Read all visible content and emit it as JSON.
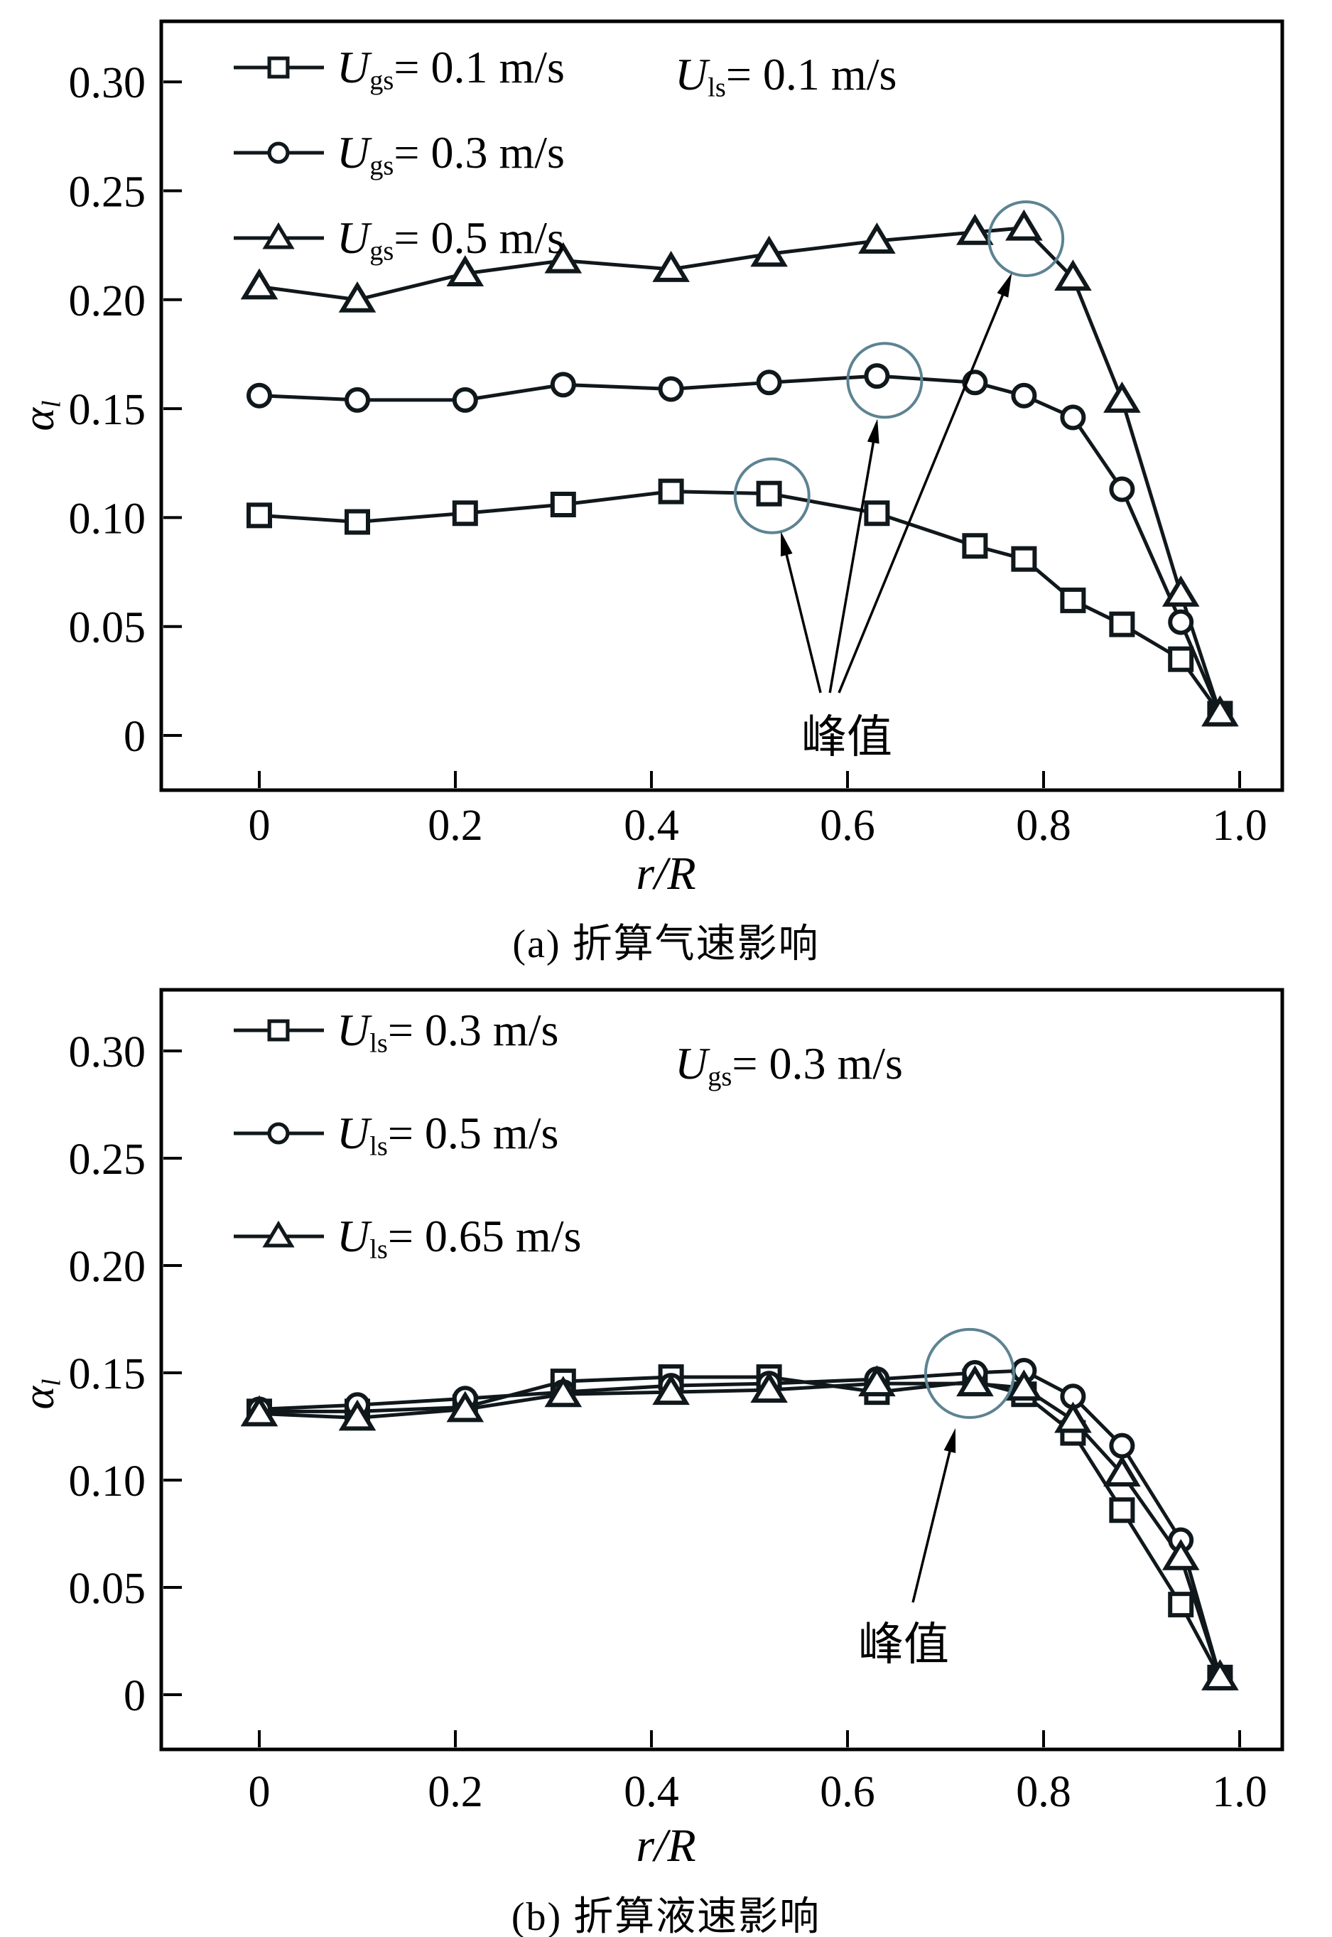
{
  "figure": {
    "background": "#ffffff",
    "series_color": "#10181c",
    "axis_color": "#000000",
    "annotation_ring_color": "#5d8392"
  },
  "chart_data": [
    {
      "type": "line",
      "panel": "a",
      "caption": "(a) 折算气速影响",
      "xlabel": "r/R",
      "ylabel": {
        "base": "α",
        "sub": "l"
      },
      "note": {
        "base": "U",
        "sub": "ls",
        "rest": "= 0.1 m/s"
      },
      "peak_label": "峰值",
      "legend_position": "upper-left",
      "grid": false,
      "xlim": [
        -0.1,
        1.043
      ],
      "ylim": [
        -0.025,
        0.328
      ],
      "x_ticks": [
        0,
        0.2,
        0.4,
        0.6,
        0.8,
        1.0
      ],
      "x_tick_labels": [
        "0",
        "0.2",
        "0.4",
        "0.6",
        "0.8",
        "1.0"
      ],
      "y_ticks": [
        0,
        0.05,
        0.1,
        0.15,
        0.2,
        0.25,
        0.3
      ],
      "y_tick_labels": [
        "0",
        "0.05",
        "0.10",
        "0.15",
        "0.20",
        "0.25",
        "0.30"
      ],
      "x": [
        0,
        0.1,
        0.21,
        0.31,
        0.42,
        0.52,
        0.63,
        0.73,
        0.78,
        0.83,
        0.88,
        0.94,
        0.98
      ],
      "series": [
        {
          "marker": "square",
          "legend": {
            "base": "U",
            "sub": "gs",
            "rest": "= 0.1 m/s"
          },
          "values": [
            0.101,
            0.098,
            0.102,
            0.106,
            0.112,
            0.111,
            0.102,
            0.087,
            0.081,
            0.062,
            0.051,
            0.035,
            0.01
          ]
        },
        {
          "marker": "circle",
          "legend": {
            "base": "U",
            "sub": "gs",
            "rest": "= 0.3 m/s"
          },
          "values": [
            0.156,
            0.154,
            0.154,
            0.161,
            0.159,
            0.162,
            0.165,
            0.162,
            0.156,
            0.146,
            0.113,
            0.052,
            0.01
          ]
        },
        {
          "marker": "triangle",
          "legend": {
            "base": "U",
            "sub": "gs",
            "rest": "= 0.5 m/s"
          },
          "values": [
            0.206,
            0.2,
            0.212,
            0.218,
            0.214,
            0.221,
            0.227,
            0.231,
            0.233,
            0.21,
            0.154,
            0.065,
            0.01
          ]
        }
      ],
      "peak_rings": [
        {
          "x": 0.523,
          "v": 0.11,
          "r": 52
        },
        {
          "x": 0.638,
          "v": 0.163,
          "r": 52
        },
        {
          "x": 0.782,
          "v": 0.228,
          "r": 52
        }
      ],
      "arrows": [
        {
          "x1": 0.5725,
          "v1": 0.0196,
          "x2": 0.532,
          "v2": 0.0936
        },
        {
          "x1": 0.582,
          "v1": 0.0196,
          "x2": 0.6305,
          "v2": 0.1453
        },
        {
          "x1": 0.5913,
          "v1": 0.0196,
          "x2": 0.7676,
          "v2": 0.2123
        }
      ]
    },
    {
      "type": "line",
      "panel": "b",
      "caption": "(b) 折算液速影响",
      "xlabel": "r/R",
      "ylabel": {
        "base": "α",
        "sub": "l"
      },
      "note": {
        "base": "U",
        "sub": "gs",
        "rest": "= 0.3 m/s"
      },
      "peak_label": "峰值",
      "legend_position": "upper-left",
      "grid": false,
      "xlim": [
        -0.1,
        1.043
      ],
      "ylim": [
        -0.025,
        0.328
      ],
      "x_ticks": [
        0,
        0.2,
        0.4,
        0.6,
        0.8,
        1.0
      ],
      "x_tick_labels": [
        "0",
        "0.2",
        "0.4",
        "0.6",
        "0.8",
        "1.0"
      ],
      "y_ticks": [
        0,
        0.05,
        0.1,
        0.15,
        0.2,
        0.25,
        0.3
      ],
      "y_tick_labels": [
        "0",
        "0.05",
        "0.10",
        "0.15",
        "0.20",
        "0.25",
        "0.30"
      ],
      "x": [
        0,
        0.1,
        0.21,
        0.31,
        0.42,
        0.52,
        0.63,
        0.73,
        0.78,
        0.83,
        0.88,
        0.94,
        0.98
      ],
      "series": [
        {
          "marker": "square",
          "legend": {
            "base": "U",
            "sub": "ls",
            "rest": "= 0.3 m/s"
          },
          "values": [
            0.132,
            0.132,
            0.134,
            0.146,
            0.148,
            0.148,
            0.141,
            0.146,
            0.14,
            0.122,
            0.086,
            0.042,
            0.008
          ]
        },
        {
          "marker": "circle",
          "legend": {
            "base": "U",
            "sub": "ls",
            "rest": "= 0.5 m/s"
          },
          "values": [
            0.133,
            0.135,
            0.138,
            0.141,
            0.144,
            0.145,
            0.147,
            0.15,
            0.151,
            0.139,
            0.116,
            0.072,
            0.008
          ]
        },
        {
          "marker": "triangle",
          "legend": {
            "base": "U",
            "sub": "ls",
            "rest": "= 0.65 m/s"
          },
          "values": [
            0.131,
            0.129,
            0.133,
            0.14,
            0.141,
            0.142,
            0.145,
            0.145,
            0.143,
            0.128,
            0.103,
            0.064,
            0.008
          ]
        }
      ],
      "peak_rings": [
        {
          "x": 0.7246,
          "v": 0.1497,
          "r": 62
        }
      ],
      "arrows": [
        {
          "x1": 0.6667,
          "v1": 0.043,
          "x2": 0.7101,
          "v2": 0.1242
        }
      ]
    }
  ]
}
